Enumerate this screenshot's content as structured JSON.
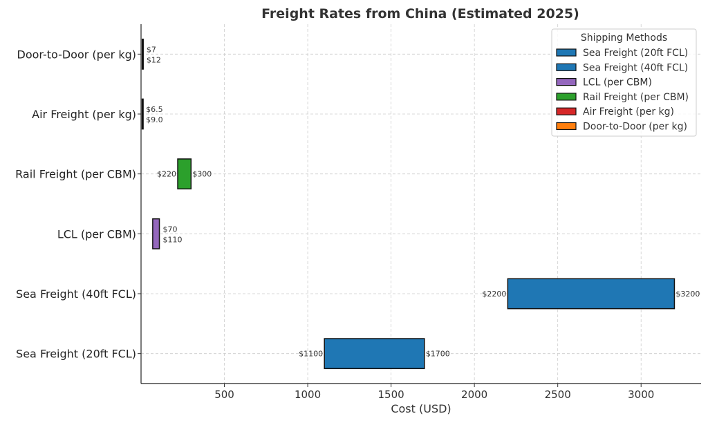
{
  "chart_data": {
    "type": "bar",
    "orientation": "horizontal-floating",
    "title": "Freight Rates from China (Estimated 2025)",
    "xlabel": "Cost (USD)",
    "ylabel": "",
    "xlim": [
      0,
      3360
    ],
    "xticks": [
      500,
      1000,
      1500,
      2000,
      2500,
      3000
    ],
    "grid": true,
    "categories": [
      "Sea Freight (20ft FCL)",
      "Sea Freight (40ft FCL)",
      "LCL (per CBM)",
      "Rail Freight (per CBM)",
      "Air Freight (per kg)",
      "Door-to-Door (per kg)"
    ],
    "series": [
      {
        "name": "Sea Freight (20ft FCL)",
        "min": 1100,
        "max": 1700,
        "min_label": "$1100",
        "max_label": "$1700",
        "color": "#1f77b4"
      },
      {
        "name": "Sea Freight (40ft FCL)",
        "min": 2200,
        "max": 3200,
        "min_label": "$2200",
        "max_label": "$3200",
        "color": "#1f77b4"
      },
      {
        "name": "LCL (per CBM)",
        "min": 70,
        "max": 110,
        "min_label": "$70",
        "max_label": "$110",
        "color": "#9467bd"
      },
      {
        "name": "Rail Freight (per CBM)",
        "min": 220,
        "max": 300,
        "min_label": "$220",
        "max_label": "$300",
        "color": "#2ca02c"
      },
      {
        "name": "Air Freight (per kg)",
        "min": 6.5,
        "max": 9.0,
        "min_label": "$6.5",
        "max_label": "$9.0",
        "color": "#d62728"
      },
      {
        "name": "Door-to-Door (per kg)",
        "min": 7,
        "max": 12,
        "min_label": "$7",
        "max_label": "$12",
        "color": "#ff7f0e"
      }
    ],
    "legend": {
      "title": "Shipping Methods",
      "placement": "lower-right"
    }
  }
}
